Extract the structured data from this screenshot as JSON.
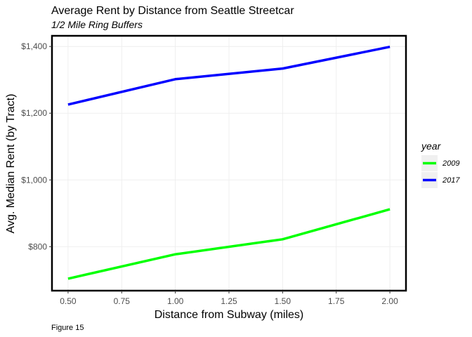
{
  "chart_data": {
    "type": "line",
    "title": "Average Rent by Distance from Seattle Streetcar",
    "subtitle": "1/2 Mile Ring Buffers",
    "xlabel": "Distance from Subway (miles)",
    "ylabel": "Avg. Median Rent (by Tract)",
    "caption": "Figure 15",
    "x": [
      0.5,
      1.0,
      1.5,
      2.0
    ],
    "x_ticks": [
      "0.50",
      "0.75",
      "1.00",
      "1.25",
      "1.50",
      "1.75",
      "2.00"
    ],
    "x_tick_values": [
      0.5,
      0.75,
      1.0,
      1.25,
      1.5,
      1.75,
      2.0
    ],
    "y_ticks": [
      "$800",
      "$1,000",
      "$1,200",
      "$1,400"
    ],
    "y_tick_values": [
      800,
      1000,
      1200,
      1400
    ],
    "xlim": [
      0.425,
      2.075
    ],
    "ylim": [
      668,
      1432
    ],
    "grid": true,
    "legend": {
      "title": "year",
      "position": "right"
    },
    "series": [
      {
        "name": "2009",
        "color": "#00FF00",
        "values": [
          704,
          777,
          822,
          912
        ]
      },
      {
        "name": "2017",
        "color": "#0000FF",
        "values": [
          1226,
          1302,
          1334,
          1399
        ]
      }
    ]
  }
}
